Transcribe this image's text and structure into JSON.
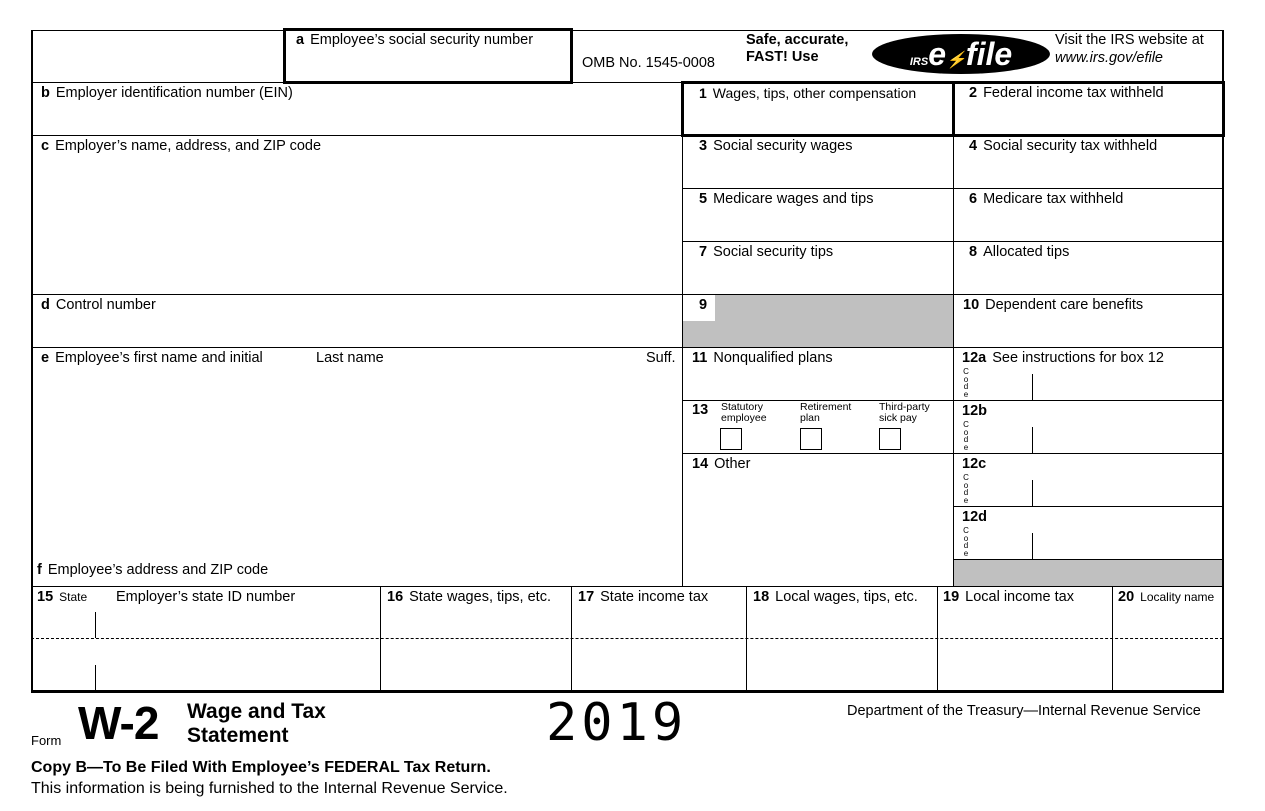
{
  "header": {
    "box_a": "Employee’s social security number",
    "box_a_letter": "a",
    "omb": "OMB No. 1545-0008",
    "efile_promo_1": "Safe, accurate,",
    "efile_promo_2": "FAST! Use",
    "efile_logo": "IRS e-file",
    "visit_1": "Visit the IRS website at",
    "visit_2": "www.irs.gov/efile"
  },
  "left": {
    "b": {
      "letter": "b",
      "label": "Employer identification number (EIN)"
    },
    "c": {
      "letter": "c",
      "label": "Employer’s name, address, and ZIP code"
    },
    "d": {
      "letter": "d",
      "label": "Control number"
    },
    "e": {
      "letter": "e",
      "label": "Employee’s first name and initial",
      "last": "Last name",
      "suff": "Suff."
    },
    "f": {
      "letter": "f",
      "label": "Employee’s address and ZIP code"
    }
  },
  "boxes": {
    "b1": {
      "num": "1",
      "label": "Wages, tips, other compensation"
    },
    "b2": {
      "num": "2",
      "label": "Federal income tax withheld"
    },
    "b3": {
      "num": "3",
      "label": "Social security wages"
    },
    "b4": {
      "num": "4",
      "label": "Social security tax withheld"
    },
    "b5": {
      "num": "5",
      "label": "Medicare wages and tips"
    },
    "b6": {
      "num": "6",
      "label": "Medicare tax withheld"
    },
    "b7": {
      "num": "7",
      "label": "Social security tips"
    },
    "b8": {
      "num": "8",
      "label": "Allocated tips"
    },
    "b9": {
      "num": "9"
    },
    "b10": {
      "num": "10",
      "label": "Dependent care benefits"
    },
    "b11": {
      "num": "11",
      "label": "Nonqualified plans"
    },
    "b12a": {
      "num": "12a",
      "label": "See instructions for box 12"
    },
    "b12b": {
      "num": "12b"
    },
    "b12c": {
      "num": "12c"
    },
    "b12d": {
      "num": "12d"
    },
    "code_label": "Code",
    "b13": {
      "num": "13",
      "statutory_1": "Statutory",
      "statutory_2": "employee",
      "retirement_1": "Retirement",
      "retirement_2": "plan",
      "thirdparty_1": "Third-party",
      "thirdparty_2": "sick pay"
    },
    "b14": {
      "num": "14",
      "label": "Other"
    }
  },
  "state": {
    "b15": {
      "num": "15",
      "label": "State",
      "label2": "Employer’s state ID number"
    },
    "b16": {
      "num": "16",
      "label": "State wages, tips, etc."
    },
    "b17": {
      "num": "17",
      "label": "State income tax"
    },
    "b18": {
      "num": "18",
      "label": "Local wages, tips, etc."
    },
    "b19": {
      "num": "19",
      "label": "Local income tax"
    },
    "b20": {
      "num": "20",
      "label": "Locality name"
    }
  },
  "footer": {
    "form_word": "Form",
    "form_name": "W-2",
    "title_1": "Wage and Tax",
    "title_2": "Statement",
    "year": "2019",
    "dept": "Department of the Treasury—Internal Revenue Service",
    "copy": "Copy B—To Be Filed With Employee’s FEDERAL Tax Return.",
    "info": "This information is being furnished to the Internal Revenue Service."
  }
}
